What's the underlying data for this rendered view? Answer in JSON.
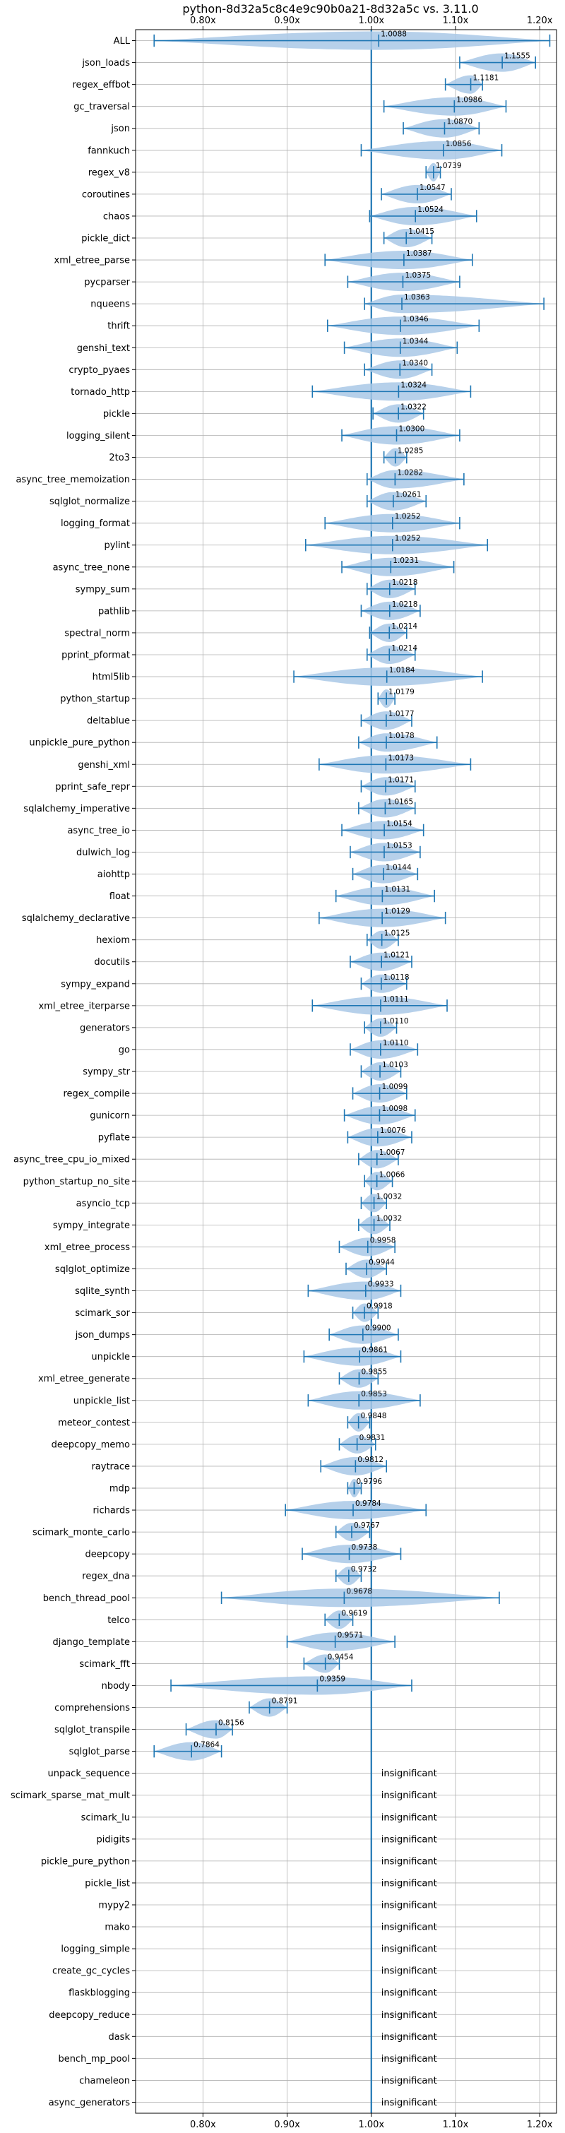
{
  "chart_data": {
    "type": "violin",
    "title": "python-8d32a5c8c4e9c90b0a21-8d32a5c vs. 3.11.0",
    "xlim": [
      0.72,
      1.22
    ],
    "xticks": [
      0.8,
      0.9,
      1.0,
      1.1,
      1.2
    ],
    "xtick_labels": [
      "0.80x",
      "0.90x",
      "1.00x",
      "1.10x",
      "1.20x"
    ],
    "reference_line": 1.0,
    "grid": true,
    "insignificant_label": "insignificant",
    "colors": {
      "violin": "#a9c8e6",
      "line": "#1f77b4",
      "grid": "#b0b0b0"
    },
    "benchmarks": [
      {
        "name": "ALL",
        "value": 1.0088,
        "label": "1.0088",
        "min": 0.742,
        "max": 1.212
      },
      {
        "name": "json_loads",
        "value": 1.1555,
        "label": "1.1555",
        "min": 1.105,
        "max": 1.195
      },
      {
        "name": "regex_effbot",
        "value": 1.1181,
        "label": "1.1181",
        "min": 1.088,
        "max": 1.132
      },
      {
        "name": "gc_traversal",
        "value": 1.0986,
        "label": "1.0986",
        "min": 1.015,
        "max": 1.16
      },
      {
        "name": "json",
        "value": 1.087,
        "label": "1.0870",
        "min": 1.038,
        "max": 1.128
      },
      {
        "name": "fannkuch",
        "value": 1.0856,
        "label": "1.0856",
        "min": 0.988,
        "max": 1.155
      },
      {
        "name": "regex_v8",
        "value": 1.0739,
        "label": "1.0739",
        "min": 1.065,
        "max": 1.082
      },
      {
        "name": "coroutines",
        "value": 1.0547,
        "label": "1.0547",
        "min": 1.012,
        "max": 1.095
      },
      {
        "name": "chaos",
        "value": 1.0524,
        "label": "1.0524",
        "min": 0.998,
        "max": 1.125
      },
      {
        "name": "pickle_dict",
        "value": 1.0415,
        "label": "1.0415",
        "min": 1.015,
        "max": 1.072
      },
      {
        "name": "xml_etree_parse",
        "value": 1.0387,
        "label": "1.0387",
        "min": 0.945,
        "max": 1.12
      },
      {
        "name": "pycparser",
        "value": 1.0375,
        "label": "1.0375",
        "min": 0.972,
        "max": 1.105
      },
      {
        "name": "nqueens",
        "value": 1.0363,
        "label": "1.0363",
        "min": 0.992,
        "max": 1.205
      },
      {
        "name": "thrift",
        "value": 1.0346,
        "label": "1.0346",
        "min": 0.948,
        "max": 1.128
      },
      {
        "name": "genshi_text",
        "value": 1.0344,
        "label": "1.0344",
        "min": 0.968,
        "max": 1.102
      },
      {
        "name": "crypto_pyaes",
        "value": 1.034,
        "label": "1.0340",
        "min": 0.992,
        "max": 1.072
      },
      {
        "name": "tornado_http",
        "value": 1.0324,
        "label": "1.0324",
        "min": 0.93,
        "max": 1.118
      },
      {
        "name": "pickle",
        "value": 1.0322,
        "label": "1.0322",
        "min": 1.002,
        "max": 1.062
      },
      {
        "name": "logging_silent",
        "value": 1.03,
        "label": "1.0300",
        "min": 0.965,
        "max": 1.105
      },
      {
        "name": "2to3",
        "value": 1.0285,
        "label": "1.0285",
        "min": 1.015,
        "max": 1.042
      },
      {
        "name": "async_tree_memoization",
        "value": 1.0282,
        "label": "1.0282",
        "min": 0.995,
        "max": 1.11
      },
      {
        "name": "sqlglot_normalize",
        "value": 1.0261,
        "label": "1.0261",
        "min": 0.995,
        "max": 1.065
      },
      {
        "name": "logging_format",
        "value": 1.0252,
        "label": "1.0252",
        "min": 0.945,
        "max": 1.105
      },
      {
        "name": "pylint",
        "value": 1.0252,
        "label": "1.0252",
        "min": 0.922,
        "max": 1.138
      },
      {
        "name": "async_tree_none",
        "value": 1.0231,
        "label": "1.0231",
        "min": 0.965,
        "max": 1.098
      },
      {
        "name": "sympy_sum",
        "value": 1.0218,
        "label": "1.0218",
        "min": 0.995,
        "max": 1.052
      },
      {
        "name": "pathlib",
        "value": 1.0218,
        "label": "1.0218",
        "min": 0.988,
        "max": 1.058
      },
      {
        "name": "spectral_norm",
        "value": 1.0214,
        "label": "1.0214",
        "min": 0.998,
        "max": 1.042
      },
      {
        "name": "pprint_pformat",
        "value": 1.0214,
        "label": "1.0214",
        "min": 0.995,
        "max": 1.052
      },
      {
        "name": "html5lib",
        "value": 1.0184,
        "label": "1.0184",
        "min": 0.908,
        "max": 1.132
      },
      {
        "name": "python_startup",
        "value": 1.0179,
        "label": "1.0179",
        "min": 1.008,
        "max": 1.028
      },
      {
        "name": "deltablue",
        "value": 1.0177,
        "label": "1.0177",
        "min": 0.988,
        "max": 1.048
      },
      {
        "name": "unpickle_pure_python",
        "value": 1.0178,
        "label": "1.0178",
        "min": 0.985,
        "max": 1.078
      },
      {
        "name": "genshi_xml",
        "value": 1.0173,
        "label": "1.0173",
        "min": 0.938,
        "max": 1.118
      },
      {
        "name": "pprint_safe_repr",
        "value": 1.0171,
        "label": "1.0171",
        "min": 0.988,
        "max": 1.052
      },
      {
        "name": "sqlalchemy_imperative",
        "value": 1.0165,
        "label": "1.0165",
        "min": 0.985,
        "max": 1.052
      },
      {
        "name": "async_tree_io",
        "value": 1.0154,
        "label": "1.0154",
        "min": 0.965,
        "max": 1.062
      },
      {
        "name": "dulwich_log",
        "value": 1.0153,
        "label": "1.0153",
        "min": 0.975,
        "max": 1.058
      },
      {
        "name": "aiohttp",
        "value": 1.0144,
        "label": "1.0144",
        "min": 0.978,
        "max": 1.055
      },
      {
        "name": "float",
        "value": 1.0131,
        "label": "1.0131",
        "min": 0.958,
        "max": 1.075
      },
      {
        "name": "sqlalchemy_declarative",
        "value": 1.0129,
        "label": "1.0129",
        "min": 0.938,
        "max": 1.088
      },
      {
        "name": "hexiom",
        "value": 1.0125,
        "label": "1.0125",
        "min": 0.995,
        "max": 1.032
      },
      {
        "name": "docutils",
        "value": 1.0121,
        "label": "1.0121",
        "min": 0.975,
        "max": 1.048
      },
      {
        "name": "sympy_expand",
        "value": 1.0118,
        "label": "1.0118",
        "min": 0.988,
        "max": 1.042
      },
      {
        "name": "xml_etree_iterparse",
        "value": 1.0111,
        "label": "1.0111",
        "min": 0.93,
        "max": 1.09
      },
      {
        "name": "generators",
        "value": 1.011,
        "label": "1.0110",
        "min": 0.992,
        "max": 1.03
      },
      {
        "name": "go",
        "value": 1.011,
        "label": "1.0110",
        "min": 0.975,
        "max": 1.055
      },
      {
        "name": "sympy_str",
        "value": 1.0103,
        "label": "1.0103",
        "min": 0.988,
        "max": 1.035
      },
      {
        "name": "regex_compile",
        "value": 1.0099,
        "label": "1.0099",
        "min": 0.978,
        "max": 1.042
      },
      {
        "name": "gunicorn",
        "value": 1.0098,
        "label": "1.0098",
        "min": 0.968,
        "max": 1.052
      },
      {
        "name": "pyflate",
        "value": 1.0076,
        "label": "1.0076",
        "min": 0.972,
        "max": 1.048
      },
      {
        "name": "async_tree_cpu_io_mixed",
        "value": 1.0067,
        "label": "1.0067",
        "min": 0.985,
        "max": 1.032
      },
      {
        "name": "python_startup_no_site",
        "value": 1.0066,
        "label": "1.0066",
        "min": 0.992,
        "max": 1.025
      },
      {
        "name": "asyncio_tcp",
        "value": 1.0032,
        "label": "1.0032",
        "min": 0.988,
        "max": 1.018
      },
      {
        "name": "sympy_integrate",
        "value": 1.0032,
        "label": "1.0032",
        "min": 0.985,
        "max": 1.022
      },
      {
        "name": "xml_etree_process",
        "value": 0.9958,
        "label": "0.9958",
        "min": 0.962,
        "max": 1.028
      },
      {
        "name": "sqlglot_optimize",
        "value": 0.9944,
        "label": "0.9944",
        "min": 0.97,
        "max": 1.018
      },
      {
        "name": "sqlite_synth",
        "value": 0.9933,
        "label": "0.9933",
        "min": 0.925,
        "max": 1.035
      },
      {
        "name": "scimark_sor",
        "value": 0.9918,
        "label": "0.9918",
        "min": 0.978,
        "max": 1.008
      },
      {
        "name": "json_dumps",
        "value": 0.99,
        "label": "0.9900",
        "min": 0.95,
        "max": 1.032
      },
      {
        "name": "unpickle",
        "value": 0.9861,
        "label": "0.9861",
        "min": 0.92,
        "max": 1.035
      },
      {
        "name": "xml_etree_generate",
        "value": 0.9855,
        "label": "0.9855",
        "min": 0.962,
        "max": 1.008
      },
      {
        "name": "unpickle_list",
        "value": 0.9853,
        "label": "0.9853",
        "min": 0.925,
        "max": 1.058
      },
      {
        "name": "meteor_contest",
        "value": 0.9848,
        "label": "0.9848",
        "min": 0.972,
        "max": 0.998
      },
      {
        "name": "deepcopy_memo",
        "value": 0.9831,
        "label": "0.9831",
        "min": 0.962,
        "max": 1.005
      },
      {
        "name": "raytrace",
        "value": 0.9812,
        "label": "0.9812",
        "min": 0.94,
        "max": 1.018
      },
      {
        "name": "mdp",
        "value": 0.9796,
        "label": "0.9796",
        "min": 0.972,
        "max": 0.988
      },
      {
        "name": "richards",
        "value": 0.9784,
        "label": "0.9784",
        "min": 0.898,
        "max": 1.065
      },
      {
        "name": "scimark_monte_carlo",
        "value": 0.9767,
        "label": "0.9767",
        "min": 0.958,
        "max": 0.998
      },
      {
        "name": "deepcopy",
        "value": 0.9738,
        "label": "0.9738",
        "min": 0.918,
        "max": 1.035
      },
      {
        "name": "regex_dna",
        "value": 0.9732,
        "label": "0.9732",
        "min": 0.958,
        "max": 0.988
      },
      {
        "name": "bench_thread_pool",
        "value": 0.9678,
        "label": "0.9678",
        "min": 0.822,
        "max": 1.152
      },
      {
        "name": "telco",
        "value": 0.9619,
        "label": "0.9619",
        "min": 0.945,
        "max": 0.978
      },
      {
        "name": "django_template",
        "value": 0.9571,
        "label": "0.9571",
        "min": 0.9,
        "max": 1.028
      },
      {
        "name": "scimark_fft",
        "value": 0.9454,
        "label": "0.9454",
        "min": 0.92,
        "max": 0.962
      },
      {
        "name": "nbody",
        "value": 0.9359,
        "label": "0.9359",
        "min": 0.762,
        "max": 1.048
      },
      {
        "name": "comprehensions",
        "value": 0.8791,
        "label": "0.8791",
        "min": 0.855,
        "max": 0.9
      },
      {
        "name": "sqlglot_transpile",
        "value": 0.8156,
        "label": "0.8156",
        "min": 0.78,
        "max": 0.835
      },
      {
        "name": "sqlglot_parse",
        "value": 0.7864,
        "label": "0.7864",
        "min": 0.742,
        "max": 0.822
      },
      {
        "name": "unpack_sequence",
        "insignificant": true
      },
      {
        "name": "scimark_sparse_mat_mult",
        "insignificant": true
      },
      {
        "name": "scimark_lu",
        "insignificant": true
      },
      {
        "name": "pidigits",
        "insignificant": true
      },
      {
        "name": "pickle_pure_python",
        "insignificant": true
      },
      {
        "name": "pickle_list",
        "insignificant": true
      },
      {
        "name": "mypy2",
        "insignificant": true
      },
      {
        "name": "mako",
        "insignificant": true
      },
      {
        "name": "logging_simple",
        "insignificant": true
      },
      {
        "name": "create_gc_cycles",
        "insignificant": true
      },
      {
        "name": "flaskblogging",
        "insignificant": true
      },
      {
        "name": "deepcopy_reduce",
        "insignificant": true
      },
      {
        "name": "dask",
        "insignificant": true
      },
      {
        "name": "bench_mp_pool",
        "insignificant": true
      },
      {
        "name": "chameleon",
        "insignificant": true
      },
      {
        "name": "async_generators",
        "insignificant": true
      }
    ]
  }
}
